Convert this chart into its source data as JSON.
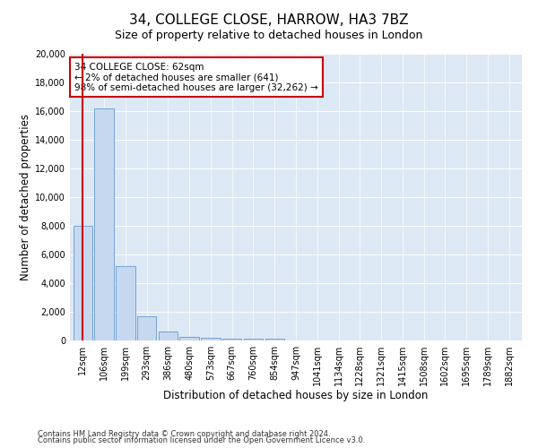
{
  "title": "34, COLLEGE CLOSE, HARROW, HA3 7BZ",
  "subtitle": "Size of property relative to detached houses in London",
  "xlabel": "Distribution of detached houses by size in London",
  "ylabel": "Number of detached properties",
  "categories": [
    "12sqm",
    "106sqm",
    "199sqm",
    "293sqm",
    "386sqm",
    "480sqm",
    "573sqm",
    "667sqm",
    "760sqm",
    "854sqm",
    "947sqm",
    "1041sqm",
    "1134sqm",
    "1228sqm",
    "1321sqm",
    "1415sqm",
    "1508sqm",
    "1602sqm",
    "1695sqm",
    "1789sqm",
    "1882sqm"
  ],
  "bar_heights": [
    8000,
    16200,
    5200,
    1700,
    600,
    280,
    200,
    130,
    100,
    120,
    0,
    0,
    0,
    0,
    0,
    0,
    0,
    0,
    0,
    0,
    0
  ],
  "bar_color": "#c5d8f0",
  "bar_edge_color": "#6699cc",
  "marker_color": "#cc0000",
  "annotation_text": "34 COLLEGE CLOSE: 62sqm\n← 2% of detached houses are smaller (641)\n98% of semi-detached houses are larger (32,262) →",
  "annotation_box_color": "#ffffff",
  "annotation_box_edge": "#cc0000",
  "ylim": [
    0,
    20000
  ],
  "yticks": [
    0,
    2000,
    4000,
    6000,
    8000,
    10000,
    12000,
    14000,
    16000,
    18000,
    20000
  ],
  "bg_color": "#dde8f5",
  "footer1": "Contains HM Land Registry data © Crown copyright and database right 2024.",
  "footer2": "Contains public sector information licensed under the Open Government Licence v3.0.",
  "title_fontsize": 11,
  "subtitle_fontsize": 9,
  "axis_label_fontsize": 8.5,
  "tick_fontsize": 7,
  "annotation_fontsize": 7.5,
  "footer_fontsize": 6
}
